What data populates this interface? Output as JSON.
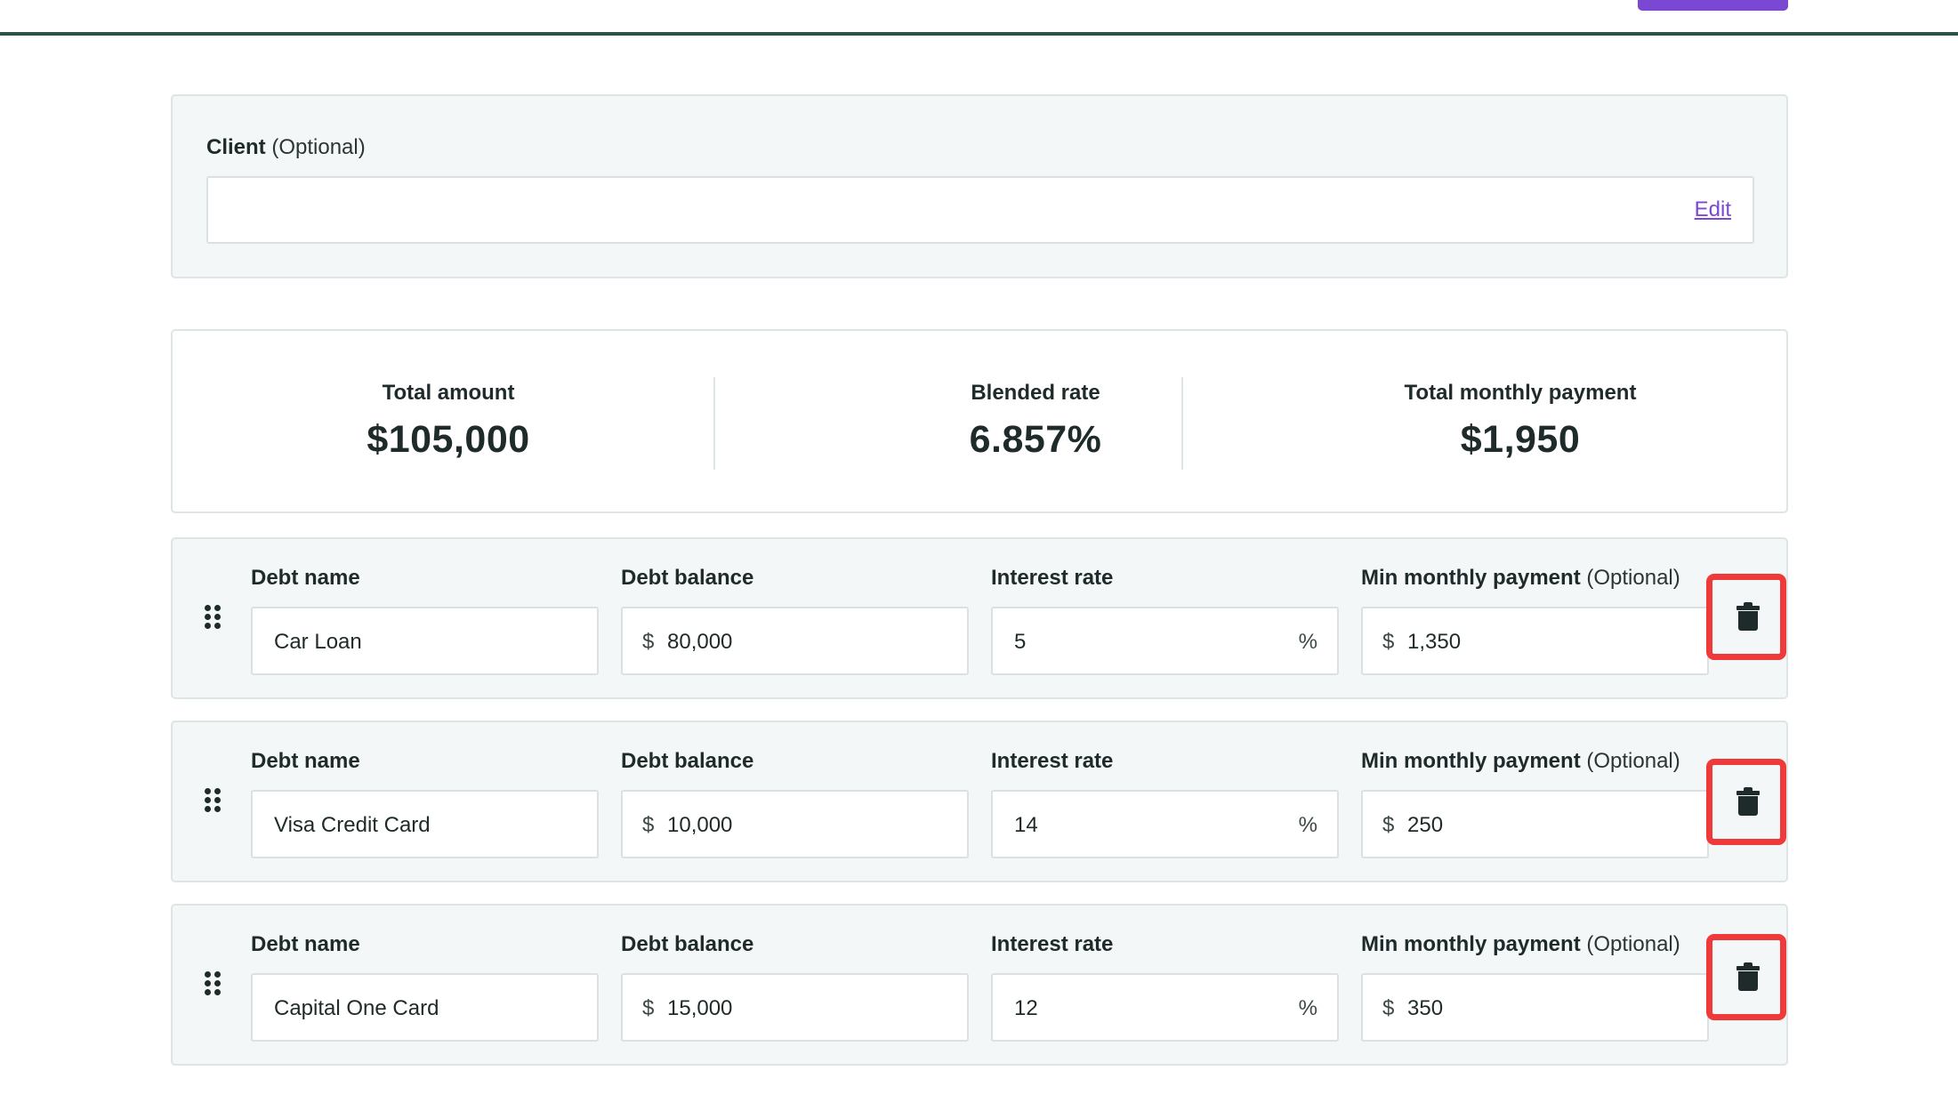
{
  "client": {
    "label": "Client",
    "optional": "(Optional)",
    "value": "",
    "edit_label": "Edit"
  },
  "summary": {
    "total_amount_label": "Total amount",
    "total_amount_value": "$105,000",
    "blended_rate_label": "Blended rate",
    "blended_rate_value": "6.857%",
    "total_monthly_label": "Total monthly payment",
    "total_monthly_value": "$1,950"
  },
  "labels": {
    "debt_name": "Debt name",
    "debt_balance": "Debt balance",
    "interest_rate": "Interest rate",
    "min_payment": "Min monthly payment",
    "optional": "(Optional)",
    "currency": "$",
    "percent": "%"
  },
  "debts": [
    {
      "name": "Car Loan",
      "balance": "80,000",
      "rate": "5",
      "min_payment": "1,350"
    },
    {
      "name": "Visa Credit Card",
      "balance": "10,000",
      "rate": "14",
      "min_payment": "250"
    },
    {
      "name": "Capital One Card",
      "balance": "15,000",
      "rate": "12",
      "min_payment": "350"
    }
  ],
  "icons": {
    "drag": "drag-handle-icon",
    "delete": "trash-icon"
  },
  "colors": {
    "accent": "#7b48d3",
    "highlight": "#ee3a3a",
    "card_bg": "#f3f7f7",
    "topline": "#2e5249"
  }
}
